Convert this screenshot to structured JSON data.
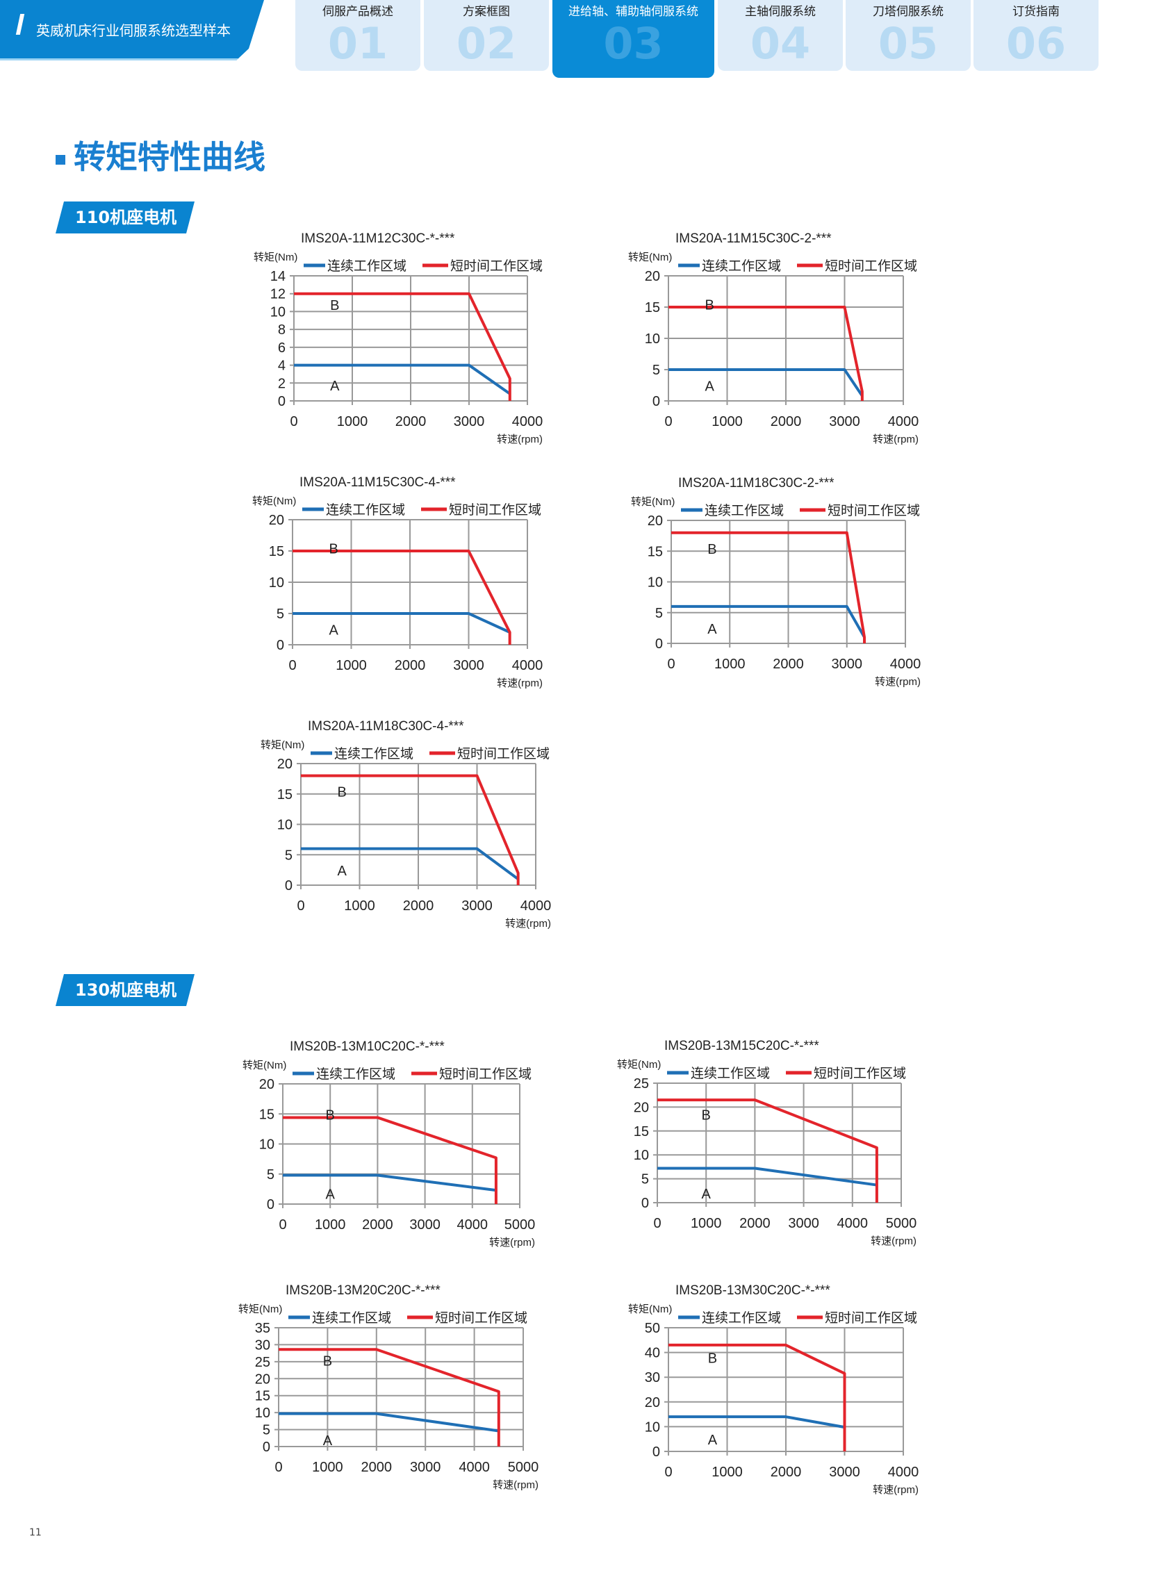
{
  "header": {
    "brand": "英威机床行业伺服系统选型样本",
    "tabs": [
      {
        "num": "01",
        "label": "伺服产品概述",
        "active": false
      },
      {
        "num": "02",
        "label": "方案框图",
        "active": false
      },
      {
        "num": "03",
        "label": "进给轴、辅助轴伺服系统",
        "active": true
      },
      {
        "num": "04",
        "label": "主轴伺服系统",
        "active": false
      },
      {
        "num": "05",
        "label": "刀塔伺服系统",
        "active": false
      },
      {
        "num": "06",
        "label": "订货指南",
        "active": false
      }
    ]
  },
  "page_title": "转矩特性曲线",
  "sections": [
    {
      "label": "110机座电机"
    },
    {
      "label": "130机座电机"
    }
  ],
  "page_number": "11",
  "colors": {
    "brand": "#0a84d0",
    "continuous": "#1f6fb5",
    "short_time": "#e3242b",
    "grid": "#999999"
  },
  "chart_data": [
    {
      "type": "line",
      "title": "IMS20A-11M12C30C-*-***",
      "ylabel": "转矩(Nm)",
      "xlabel": "转速(rpm)",
      "xlim": [
        0,
        4000
      ],
      "xstep": 1000,
      "ylim": [
        0,
        14
      ],
      "ystep": 2,
      "series": [
        {
          "name": "连续工作区域",
          "points": [
            [
              0,
              4
            ],
            [
              3000,
              4
            ],
            [
              3700,
              0.8
            ]
          ]
        },
        {
          "name": "短时间工作区域",
          "points": [
            [
              0,
              12
            ],
            [
              3000,
              12
            ],
            [
              3700,
              2.5
            ],
            [
              3700,
              0
            ]
          ]
        }
      ],
      "annotations": [
        {
          "text": "B",
          "x": 700,
          "y": 10.8
        },
        {
          "text": "A",
          "x": 700,
          "y": 1.8
        }
      ]
    },
    {
      "type": "line",
      "title": "IMS20A-11M15C30C-2-***",
      "ylabel": "转矩(Nm)",
      "xlabel": "转速(rpm)",
      "xlim": [
        0,
        4000
      ],
      "xstep": 1000,
      "ylim": [
        0,
        20
      ],
      "ystep": 5,
      "series": [
        {
          "name": "连续工作区域",
          "points": [
            [
              0,
              5
            ],
            [
              3000,
              5
            ],
            [
              3300,
              0.8
            ]
          ]
        },
        {
          "name": "短时间工作区域",
          "points": [
            [
              0,
              15
            ],
            [
              3000,
              15
            ],
            [
              3300,
              1.5
            ],
            [
              3300,
              0
            ]
          ]
        }
      ],
      "annotations": [
        {
          "text": "B",
          "x": 700,
          "y": 15.5
        },
        {
          "text": "A",
          "x": 700,
          "y": 2.5
        }
      ]
    },
    {
      "type": "line",
      "title": "IMS20A-11M15C30C-4-***",
      "ylabel": "转矩(Nm)",
      "xlabel": "转速(rpm)",
      "xlim": [
        0,
        4000
      ],
      "xstep": 1000,
      "ylim": [
        0,
        20
      ],
      "ystep": 5,
      "series": [
        {
          "name": "连续工作区域",
          "points": [
            [
              0,
              5
            ],
            [
              3000,
              5
            ],
            [
              3700,
              2
            ]
          ]
        },
        {
          "name": "短时间工作区域",
          "points": [
            [
              0,
              15
            ],
            [
              3000,
              15
            ],
            [
              3700,
              2
            ],
            [
              3700,
              0
            ]
          ]
        }
      ],
      "annotations": [
        {
          "text": "B",
          "x": 700,
          "y": 15.5
        },
        {
          "text": "A",
          "x": 700,
          "y": 2.5
        }
      ]
    },
    {
      "type": "line",
      "title": "IMS20A-11M18C30C-2-***",
      "ylabel": "转矩(Nm)",
      "xlabel": "转速(rpm)",
      "xlim": [
        0,
        4000
      ],
      "xstep": 1000,
      "ylim": [
        0,
        20
      ],
      "ystep": 5,
      "series": [
        {
          "name": "连续工作区域",
          "points": [
            [
              0,
              6
            ],
            [
              3000,
              6
            ],
            [
              3300,
              1
            ]
          ]
        },
        {
          "name": "短时间工作区域",
          "points": [
            [
              0,
              18
            ],
            [
              3000,
              18
            ],
            [
              3300,
              1
            ],
            [
              3300,
              0
            ]
          ]
        }
      ],
      "annotations": [
        {
          "text": "B",
          "x": 700,
          "y": 15.5
        },
        {
          "text": "A",
          "x": 700,
          "y": 2.5
        }
      ]
    },
    {
      "type": "line",
      "title": "IMS20A-11M18C30C-4-***",
      "ylabel": "转矩(Nm)",
      "xlabel": "转速(rpm)",
      "xlim": [
        0,
        4000
      ],
      "xstep": 1000,
      "ylim": [
        0,
        20
      ],
      "ystep": 5,
      "series": [
        {
          "name": "连续工作区域",
          "points": [
            [
              0,
              6
            ],
            [
              3000,
              6
            ],
            [
              3700,
              1
            ]
          ]
        },
        {
          "name": "短时间工作区域",
          "points": [
            [
              0,
              18
            ],
            [
              3000,
              18
            ],
            [
              3700,
              2
            ],
            [
              3700,
              0
            ]
          ]
        }
      ],
      "annotations": [
        {
          "text": "B",
          "x": 700,
          "y": 15.5
        },
        {
          "text": "A",
          "x": 700,
          "y": 2.5
        }
      ]
    },
    {
      "type": "line",
      "title": "IMS20B-13M10C20C-*-***",
      "ylabel": "转矩(Nm)",
      "xlabel": "转速(rpm)",
      "xlim": [
        0,
        5000
      ],
      "xstep": 1000,
      "ylim": [
        0,
        20
      ],
      "ystep": 5,
      "series": [
        {
          "name": "连续工作区域",
          "points": [
            [
              0,
              4.8
            ],
            [
              2000,
              4.8
            ],
            [
              4500,
              2.3
            ]
          ]
        },
        {
          "name": "短时间工作区域",
          "points": [
            [
              0,
              14.4
            ],
            [
              2000,
              14.4
            ],
            [
              4500,
              7.7
            ],
            [
              4500,
              0
            ]
          ]
        }
      ],
      "annotations": [
        {
          "text": "B",
          "x": 1000,
          "y": 15
        },
        {
          "text": "A",
          "x": 1000,
          "y": 1.8
        }
      ]
    },
    {
      "type": "line",
      "title": "IMS20B-13M15C20C-*-***",
      "ylabel": "转矩(Nm)",
      "xlabel": "转速(rpm)",
      "xlim": [
        0,
        5000
      ],
      "xstep": 1000,
      "ylim": [
        0,
        25
      ],
      "ystep": 5,
      "series": [
        {
          "name": "连续工作区域",
          "points": [
            [
              0,
              7.2
            ],
            [
              2000,
              7.2
            ],
            [
              4500,
              3.7
            ]
          ]
        },
        {
          "name": "短时间工作区域",
          "points": [
            [
              0,
              21.5
            ],
            [
              2000,
              21.5
            ],
            [
              4500,
              11.5
            ],
            [
              4500,
              0
            ]
          ]
        }
      ],
      "annotations": [
        {
          "text": "B",
          "x": 1000,
          "y": 18.5
        },
        {
          "text": "A",
          "x": 1000,
          "y": 2
        }
      ]
    },
    {
      "type": "line",
      "title": "IMS20B-13M20C20C-*-***",
      "ylabel": "转矩(Nm)",
      "xlabel": "转速(rpm)",
      "xlim": [
        0,
        5000
      ],
      "xstep": 1000,
      "ylim": [
        0,
        35
      ],
      "ystep": 5,
      "series": [
        {
          "name": "连续工作区域",
          "points": [
            [
              0,
              9.7
            ],
            [
              2000,
              9.7
            ],
            [
              4500,
              4.6
            ]
          ]
        },
        {
          "name": "短时间工作区域",
          "points": [
            [
              0,
              28.6
            ],
            [
              2000,
              28.6
            ],
            [
              4500,
              16.2
            ],
            [
              4500,
              0
            ]
          ]
        }
      ],
      "annotations": [
        {
          "text": "B",
          "x": 1000,
          "y": 25.5
        },
        {
          "text": "A",
          "x": 1000,
          "y": 2
        }
      ]
    },
    {
      "type": "line",
      "title": "IMS20B-13M30C20C-*-***",
      "ylabel": "转矩(Nm)",
      "xlabel": "转速(rpm)",
      "xlim": [
        0,
        4000
      ],
      "xstep": 1000,
      "ylim": [
        0,
        50
      ],
      "ystep": 10,
      "series": [
        {
          "name": "连续工作区域",
          "points": [
            [
              0,
              14
            ],
            [
              2000,
              14
            ],
            [
              3000,
              9.8
            ]
          ]
        },
        {
          "name": "短时间工作区域",
          "points": [
            [
              0,
              43
            ],
            [
              2000,
              43
            ],
            [
              3000,
              31.5
            ],
            [
              3000,
              0
            ]
          ]
        }
      ],
      "annotations": [
        {
          "text": "B",
          "x": 750,
          "y": 38
        },
        {
          "text": "A",
          "x": 750,
          "y": 5
        }
      ]
    }
  ]
}
